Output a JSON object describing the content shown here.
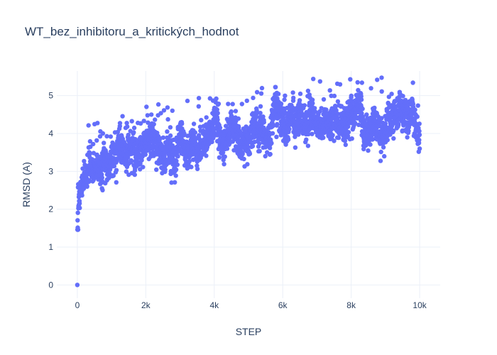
{
  "chart_data": {
    "type": "scatter",
    "title": "WT_bez_inhibitoru_a_kritických_hodnot",
    "xlabel": "STEP",
    "ylabel": "RMSD (A)",
    "xlim": [
      -600,
      10600
    ],
    "ylim": [
      -0.35,
      5.65
    ],
    "x_ticks": [
      0,
      2000,
      4000,
      6000,
      8000,
      10000
    ],
    "x_tick_labels": [
      "0",
      "2k",
      "4k",
      "6k",
      "8k",
      "10k"
    ],
    "y_ticks": [
      0,
      1,
      2,
      3,
      4,
      5
    ],
    "y_tick_labels": [
      "0",
      "1",
      "2",
      "3",
      "4",
      "5"
    ],
    "grid": true,
    "marker_color": "#636efa",
    "series_trend": {
      "x": [
        0,
        10,
        30,
        60,
        100,
        150,
        200,
        300,
        500,
        800,
        1200,
        1600,
        2000,
        2500,
        3000,
        3500,
        4000,
        4500,
        5000,
        5500,
        6000,
        6500,
        7000,
        7500,
        8000,
        8500,
        9000,
        9500,
        10000
      ],
      "y": [
        0.0,
        2.0,
        2.4,
        2.6,
        2.8,
        2.9,
        3.0,
        3.1,
        3.2,
        3.2,
        3.3,
        3.4,
        3.5,
        3.6,
        3.7,
        3.8,
        3.9,
        4.0,
        4.0,
        4.0,
        4.2,
        4.4,
        4.3,
        4.2,
        4.3,
        4.4,
        4.3,
        4.2,
        4.2
      ]
    },
    "n_points": 10000
  }
}
